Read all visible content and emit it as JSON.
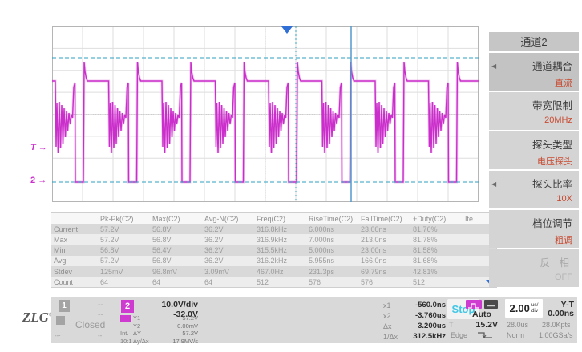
{
  "colors": {
    "trace": "#cb2fcb",
    "cursor": "#2e9fc0",
    "trigger_marker": "#2f6fd6",
    "menu_value": "#c84b32",
    "stop_text": "#41c7e6",
    "channel2": "#cf3ad0"
  },
  "plot": {
    "trigger_level_marker": "T",
    "channel_ground_marker": "2",
    "marker_arrow": "→"
  },
  "waveform": {
    "type": "pulse-train",
    "channel": "C2",
    "frequency": "316.8kHz",
    "duty_high": "81.76%",
    "high_level": "56.8V",
    "low_level": "0V"
  },
  "menu": {
    "title": "通道2",
    "items": [
      {
        "label": "通道耦合",
        "value": "直流",
        "selected": true,
        "arrow": true,
        "disabled": false,
        "name": "coupling"
      },
      {
        "label": "带宽限制",
        "value": "20MHz",
        "selected": false,
        "arrow": false,
        "disabled": false,
        "name": "bandwidth-limit"
      },
      {
        "label": "探头类型",
        "value": "电压探头",
        "selected": false,
        "arrow": false,
        "disabled": false,
        "name": "probe-type"
      },
      {
        "label": "探头比率",
        "value": "10X",
        "selected": false,
        "arrow": true,
        "disabled": false,
        "name": "probe-ratio"
      },
      {
        "label": "档位调节",
        "value": "粗调",
        "selected": false,
        "arrow": false,
        "disabled": false,
        "name": "scale-adjust"
      },
      {
        "label": "反 相",
        "value": "OFF",
        "selected": false,
        "arrow": false,
        "disabled": true,
        "name": "invert"
      }
    ]
  },
  "table": {
    "headers": [
      "",
      "Pk-Pk(C2)",
      "Max(C2)",
      "Avg-N(C2)",
      "Freq(C2)",
      "RiseTime(C2)",
      "FallTime(C2)",
      "+Duty(C2)",
      "Ite"
    ],
    "rows": [
      {
        "label": "Current",
        "values": [
          "57.2V",
          "56.8V",
          "36.2V",
          "316.8kHz",
          "6.000ns",
          "23.00ns",
          "81.76%",
          ""
        ]
      },
      {
        "label": "Max",
        "values": [
          "57.2V",
          "56.8V",
          "36.2V",
          "316.9kHz",
          "7.000ns",
          "213.0ns",
          "81.78%",
          ""
        ]
      },
      {
        "label": "Min",
        "values": [
          "56.8V",
          "56.4V",
          "36.2V",
          "315.5kHz",
          "5.000ns",
          "23.00ns",
          "81.58%",
          ""
        ]
      },
      {
        "label": "Avg",
        "values": [
          "57.2V",
          "56.8V",
          "36.2V",
          "316.2kHz",
          "5.955ns",
          "166.0ns",
          "81.68%",
          ""
        ]
      },
      {
        "label": "Stdev",
        "values": [
          "125mV",
          "96.8mV",
          "3.09mV",
          "467.0Hz",
          "231.3ps",
          "69.79ns",
          "42.81%",
          ""
        ]
      },
      {
        "label": "Count",
        "values": [
          "64",
          "64",
          "64",
          "512",
          "576",
          "576",
          "512",
          ""
        ]
      }
    ]
  },
  "bottom": {
    "logo": "ZLG",
    "channel1": {
      "badge": "1",
      "value1": "--",
      "value2": "--",
      "status": "Closed",
      "value3": "--·",
      "value4": "--"
    },
    "channel2": {
      "badge": "2",
      "scale": "10.0V/div",
      "offset": "-32.0V"
    },
    "cursor_y": [
      {
        "prefix": "",
        "label": "Y1",
        "value": "57.2V"
      },
      {
        "prefix": "",
        "label": "Y2",
        "value": "0.00mV"
      },
      {
        "prefix": "Int.",
        "label": "ΔY",
        "value": "57.2V"
      },
      {
        "prefix": "10:1",
        "label": "Δy/Δx",
        "value": "17.9MV/s"
      }
    ],
    "cursor_x": [
      {
        "label": "x1",
        "value": "-560.0ns"
      },
      {
        "label": "x2",
        "value": "-3.760us"
      },
      {
        "label": "Δx",
        "value": "3.200us"
      },
      {
        "label": "1/Δx",
        "value": "312.5kHz"
      }
    ],
    "trigger": {
      "run_state": "Stop",
      "sweep_mode": "Auto",
      "level_label": "T",
      "level": "15.2V",
      "type": "Edge"
    },
    "timebase": {
      "scale": "2.00",
      "unit_top": "us/",
      "unit_bottom": "div",
      "display_mode": "Y-T",
      "delay": "0.00ns",
      "window": "28.0us",
      "points": "28.0Kpts",
      "acq_mode": "Norm",
      "sample_rate": "1.00GSa/s"
    }
  }
}
